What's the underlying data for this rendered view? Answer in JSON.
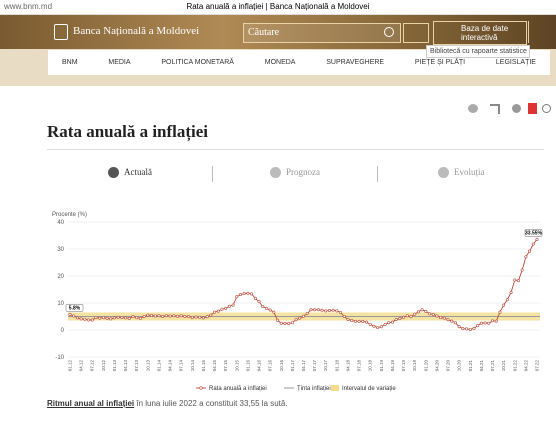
{
  "browser": {
    "url": "www.bnm.md",
    "tab_title": "Rata anuală a inflației | Banca Națională a Moldovei"
  },
  "header": {
    "logo": "Banca Națională a Moldovei",
    "search": "Căutare",
    "database": "Baza de date interactivă",
    "tooltip": "Bibliotecă cu rapoarte statistice",
    "nav": [
      "BNM",
      "MEDIA",
      "POLITICA MONETARĂ",
      "MONEDA",
      "SUPRAVEGHERE",
      "PIEȚE ȘI PLĂȚI",
      "LEGISLAȚIE"
    ]
  },
  "page": {
    "title": "Rata anuală a inflației",
    "tabs": [
      "Actuală",
      "Prognoza",
      "Evoluția"
    ],
    "footer_lead": "Ritmul anual al inflației",
    "footer_rest": "în luna iulie 2022 a constituit 33,55 la sută."
  },
  "chart_data": {
    "type": "line",
    "y_label": "Procente (%)",
    "categories": [
      "01.12",
      null,
      null,
      "04.12",
      null,
      null,
      "07.12",
      null,
      null,
      "10.12",
      null,
      null,
      "01.13",
      null,
      null,
      "04.13",
      null,
      null,
      "07.13",
      null,
      null,
      "10.13",
      null,
      null,
      "01.14",
      null,
      null,
      "04.14",
      null,
      null,
      "07.14",
      null,
      null,
      "10.14",
      null,
      null,
      "01.15",
      null,
      null,
      "04.15",
      null,
      null,
      "07.15",
      null,
      null,
      "10.15",
      null,
      null,
      "01.16",
      null,
      null,
      "04.16",
      null,
      null,
      "07.16",
      null,
      null,
      "10.16",
      null,
      null,
      "01.17",
      null,
      null,
      "04.17",
      null,
      null,
      "07.17",
      null,
      null,
      "10.17",
      null,
      null,
      "01.18",
      null,
      null,
      "04.18",
      null,
      null,
      "07.18",
      null,
      null,
      "10.18",
      null,
      null,
      "01.19",
      null,
      null,
      "04.19",
      null,
      null,
      "07.19",
      null,
      null,
      "10.19",
      null,
      null,
      "01.20",
      null,
      null,
      "04.20",
      null,
      null,
      "07.20",
      null,
      null,
      "10.20",
      null,
      null,
      "01.21",
      null,
      null,
      "04.21",
      null,
      null,
      "07.21",
      null,
      null,
      "10.21",
      null,
      null,
      "01.22",
      null,
      null,
      "04.22",
      null,
      null,
      "07.22"
    ],
    "series": [
      {
        "name": "Rata anuală a inflației",
        "color": "#b8493a",
        "values": [
          5.8,
          5.2,
          4.5,
          4.1,
          4.0,
          3.7,
          3.7,
          4.6,
          4.4,
          4.6,
          4.3,
          4.1,
          4.5,
          4.7,
          4.6,
          4.5,
          4.3,
          5.0,
          4.6,
          4.3,
          5.0,
          5.5,
          5.4,
          5.2,
          5.3,
          5.0,
          5.3,
          5.2,
          5.3,
          5.1,
          5.3,
          5.0,
          5.0,
          4.6,
          4.8,
          4.7,
          4.5,
          4.9,
          5.5,
          6.6,
          7.0,
          7.7,
          8.0,
          8.8,
          9.2,
          12.3,
          13.1,
          13.5,
          13.6,
          13.4,
          11.7,
          10.5,
          8.7,
          8.0,
          7.4,
          6.6,
          3.6,
          2.5,
          2.4,
          2.4,
          2.7,
          3.8,
          4.4,
          5.1,
          6.1,
          7.5,
          7.5,
          7.5,
          7.3,
          7.1,
          7.2,
          7.3,
          7.1,
          6.5,
          5.0,
          3.9,
          3.5,
          3.2,
          3.2,
          3.2,
          2.9,
          2.1,
          1.4,
          0.9,
          1.2,
          2.0,
          2.7,
          2.9,
          3.9,
          4.2,
          4.7,
          5.3,
          4.9,
          5.9,
          6.7,
          7.5,
          6.9,
          6.0,
          5.8,
          5.2,
          4.6,
          4.4,
          3.8,
          3.3,
          2.7,
          1.2,
          0.5,
          0.4,
          0.2,
          0.6,
          1.6,
          2.5,
          2.6,
          2.5,
          3.4,
          3.3,
          6.6,
          9.2,
          11.2,
          13.9,
          18.5,
          18.3,
          22.2,
          27.1,
          29.2,
          31.8,
          33.55
        ],
        "value_labels": [
          "5.8%",
          null,
          null,
          null,
          null,
          null,
          null,
          null,
          null,
          null,
          null,
          null,
          null,
          null,
          null,
          null,
          null,
          null,
          null,
          null,
          null,
          null,
          null,
          null,
          null,
          null,
          null,
          null,
          null,
          null,
          null,
          null,
          null,
          null,
          null,
          null,
          null,
          null,
          null,
          null,
          null,
          null,
          null,
          null,
          null,
          null,
          null,
          null,
          null,
          null,
          null,
          null,
          null,
          null,
          null,
          null,
          null,
          null,
          null,
          null,
          null,
          null,
          null,
          null,
          null,
          null,
          null,
          null,
          null,
          null,
          null,
          null,
          null,
          null,
          null,
          null,
          null,
          null,
          null,
          null,
          null,
          null,
          null,
          null,
          null,
          null,
          null,
          null,
          null,
          null,
          null,
          null,
          null,
          null,
          null,
          null,
          null,
          null,
          null,
          null,
          null,
          null,
          null,
          null,
          null,
          null,
          null,
          null,
          null,
          null,
          null,
          null,
          null,
          null,
          null,
          null,
          null,
          null,
          null,
          null,
          null,
          null,
          null,
          null,
          null,
          null,
          "33.55%"
        ]
      }
    ],
    "target": {
      "name": "Ținta inflației",
      "value": 5,
      "color": "#999999"
    },
    "interval": {
      "name": "Intervalul de variație",
      "low": 3.5,
      "high": 6.5,
      "color": "#f3dc8c"
    },
    "ylim": [
      -10,
      40
    ],
    "yticks": [
      -10,
      0,
      10,
      20,
      30,
      40
    ],
    "grid": true
  }
}
